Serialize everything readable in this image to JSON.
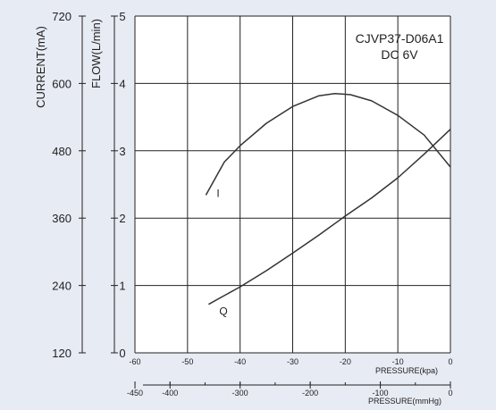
{
  "chart_data": {
    "type": "line",
    "title": "CJVP37-D06A1",
    "subtitle": "DC 6V",
    "xlabel_kpa": "PRESSURE(kpa)",
    "xlabel_mmhg": "PRESSURE(mmHg)",
    "ylabel_flow": "FLOW(L/min)",
    "ylabel_current": "CURRENT(mA)",
    "xlim": [
      -60,
      0
    ],
    "ylim_flow": [
      0,
      5
    ],
    "ylim_current": [
      120,
      720
    ],
    "x_ticks_kpa": [
      "-60",
      "-50",
      "-40",
      "-30",
      "-20",
      "-10",
      "0"
    ],
    "x_ticks_mmhg": [
      "-450",
      "-400",
      "-300",
      "-200",
      "-100",
      "0"
    ],
    "y_ticks_flow": [
      "0",
      "1",
      "2",
      "3",
      "4",
      "5"
    ],
    "y_ticks_current": [
      "120",
      "240",
      "360",
      "480",
      "600",
      "720"
    ],
    "grid": true,
    "series": [
      {
        "name": "I",
        "axis": "current",
        "x": [
          -46.5,
          -43,
          -40,
          -35,
          -30,
          -25,
          -22,
          -19,
          -15,
          -10,
          -5,
          0
        ],
        "y": [
          401,
          460,
          489,
          529,
          559,
          578,
          582,
          580,
          569,
          543,
          508,
          451
        ]
      },
      {
        "name": "Q",
        "axis": "flow",
        "x": [
          -46,
          -43,
          -40,
          -35,
          -30,
          -25,
          -20,
          -15,
          -10,
          -5,
          0
        ],
        "y": [
          0.72,
          0.85,
          0.98,
          1.22,
          1.48,
          1.75,
          2.03,
          2.3,
          2.6,
          2.95,
          3.32
        ]
      }
    ]
  }
}
